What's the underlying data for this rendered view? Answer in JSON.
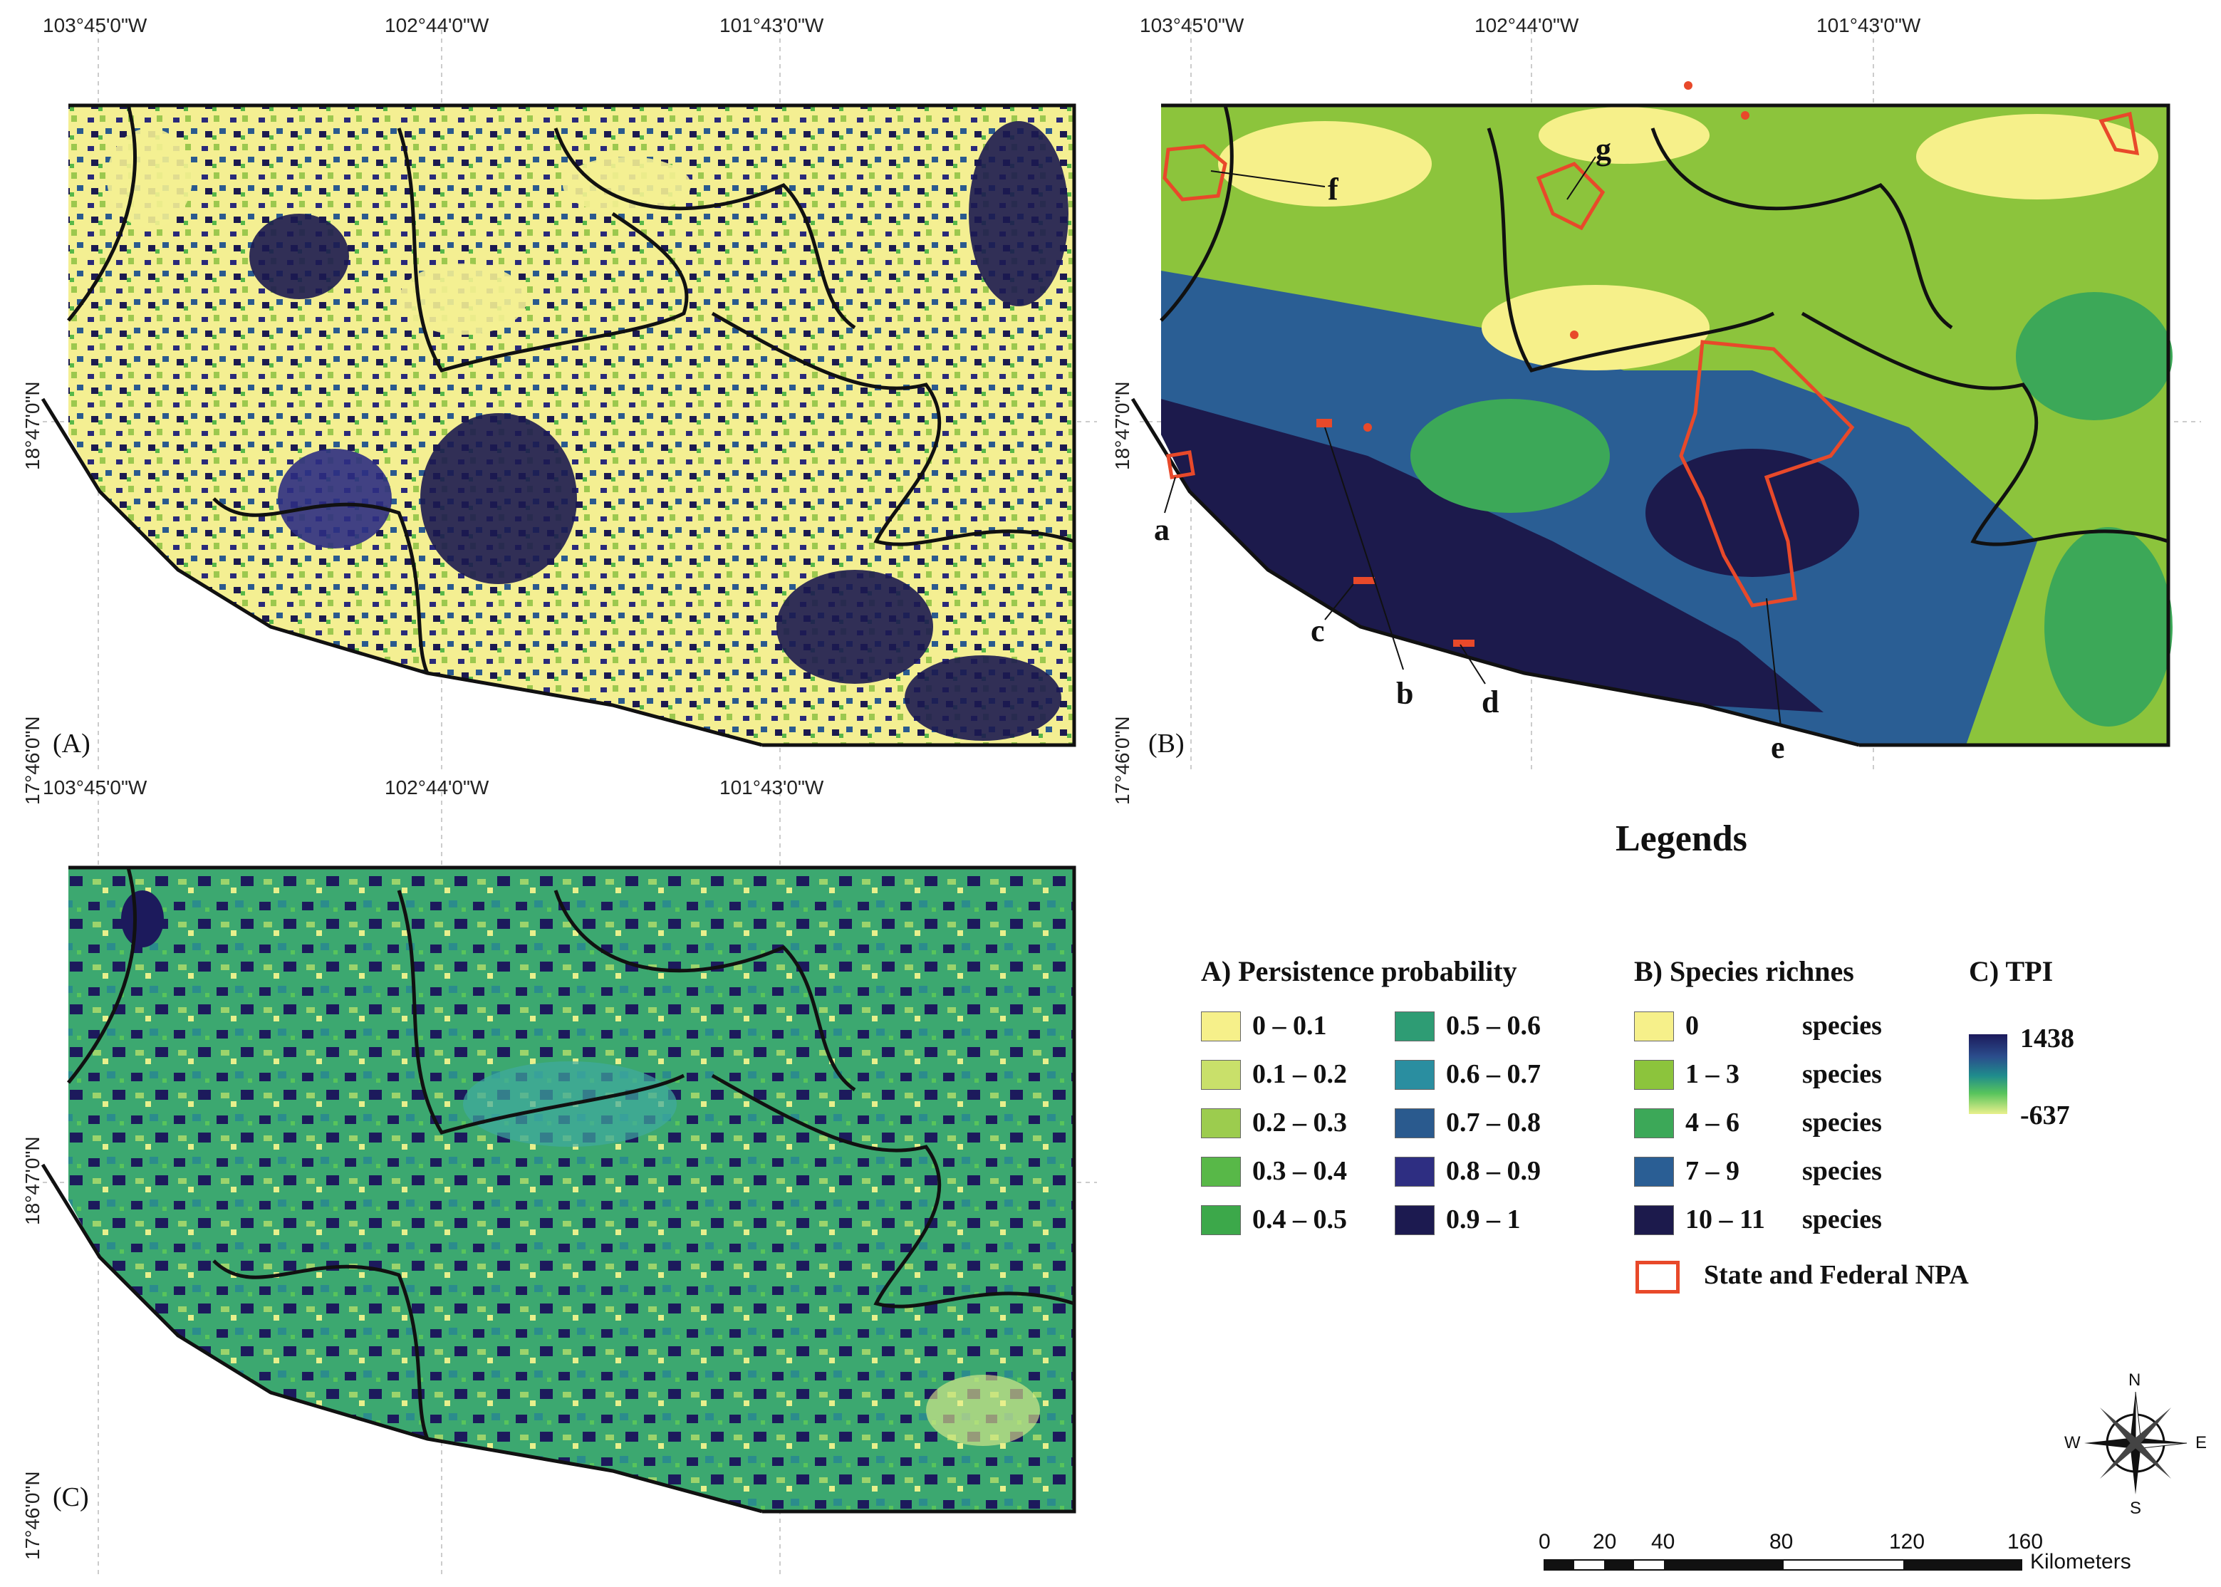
{
  "coords": {
    "lon": [
      "103°45'0\"W",
      "102°44'0\"W",
      "101°43'0\"W"
    ],
    "lat": [
      "18°47'0\"N",
      "17°46'0\"N"
    ]
  },
  "panels": {
    "a": {
      "label": "(A)"
    },
    "b": {
      "label": "(B)",
      "annotations": [
        "a",
        "b",
        "c",
        "d",
        "e",
        "f",
        "g"
      ]
    },
    "c": {
      "label": "(C)"
    }
  },
  "legend": {
    "title": "Legends",
    "persistence": {
      "heading": "A) Persistence probability",
      "items": [
        {
          "label": "0 – 0.1",
          "color": "#f6f08a"
        },
        {
          "label": "0.1 – 0.2",
          "color": "#c9e06a"
        },
        {
          "label": "0.2 – 0.3",
          "color": "#9ccc4e"
        },
        {
          "label": "0.3 – 0.4",
          "color": "#58b848"
        },
        {
          "label": "0.4 – 0.5",
          "color": "#3ca84a"
        },
        {
          "label": "0.5 – 0.6",
          "color": "#2e9c74"
        },
        {
          "label": "0.6 – 0.7",
          "color": "#2a8ea0"
        },
        {
          "label": "0.7 – 0.8",
          "color": "#2a5a8e"
        },
        {
          "label": "0.8 – 0.9",
          "color": "#2e2e82"
        },
        {
          "label": "0.9 – 1",
          "color": "#1c1a50"
        }
      ]
    },
    "richness": {
      "heading": "B) Species richnes",
      "items": [
        {
          "label": "0",
          "unit": "species",
          "color": "#f6f08a"
        },
        {
          "label": "1 – 3",
          "unit": "species",
          "color": "#8cc43c"
        },
        {
          "label": "4 – 6",
          "unit": "species",
          "color": "#3ca858"
        },
        {
          "label": "7 – 9",
          "unit": "species",
          "color": "#2a5e94"
        },
        {
          "label": "10 – 11",
          "unit": "species",
          "color": "#1c1a4c"
        }
      ],
      "npa": {
        "label": "State and Federal NPA",
        "color": "#e8492a"
      }
    },
    "tpi": {
      "heading": "C) TPI",
      "max": "1438",
      "min": "-637"
    }
  },
  "compass": {
    "n": "N",
    "s": "S",
    "e": "E",
    "w": "W"
  },
  "scalebar": {
    "ticks": [
      "0",
      "20",
      "40",
      "80",
      "120",
      "160"
    ],
    "unit": "Kilometers"
  }
}
